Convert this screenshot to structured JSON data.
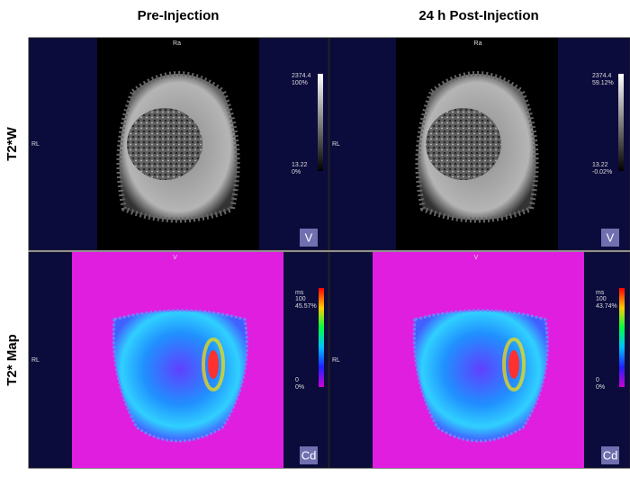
{
  "columns": [
    "Pre-Injection",
    "24 h Post-Injection"
  ],
  "rows": [
    "T2*W",
    "T2* Map"
  ],
  "panels": [
    {
      "top_marker": "Ra",
      "side_marker": "RL",
      "scale": [
        "2374.4",
        "100%",
        "13.22",
        "0%"
      ],
      "badge": "V"
    },
    {
      "top_marker": "Ra",
      "side_marker": "RL",
      "scale": [
        "2374.4",
        "59.12%",
        "13.22",
        "-0.02%"
      ],
      "badge": "V"
    },
    {
      "top_marker": "V",
      "side_marker": "RL",
      "scale": [
        "ms",
        "100",
        "45.57%",
        "0",
        "0%"
      ],
      "badge": "Cd"
    },
    {
      "top_marker": "V",
      "side_marker": "RL",
      "scale": [
        "ms",
        "100",
        "43.74%",
        "0",
        "0%"
      ],
      "badge": "Cd"
    }
  ]
}
